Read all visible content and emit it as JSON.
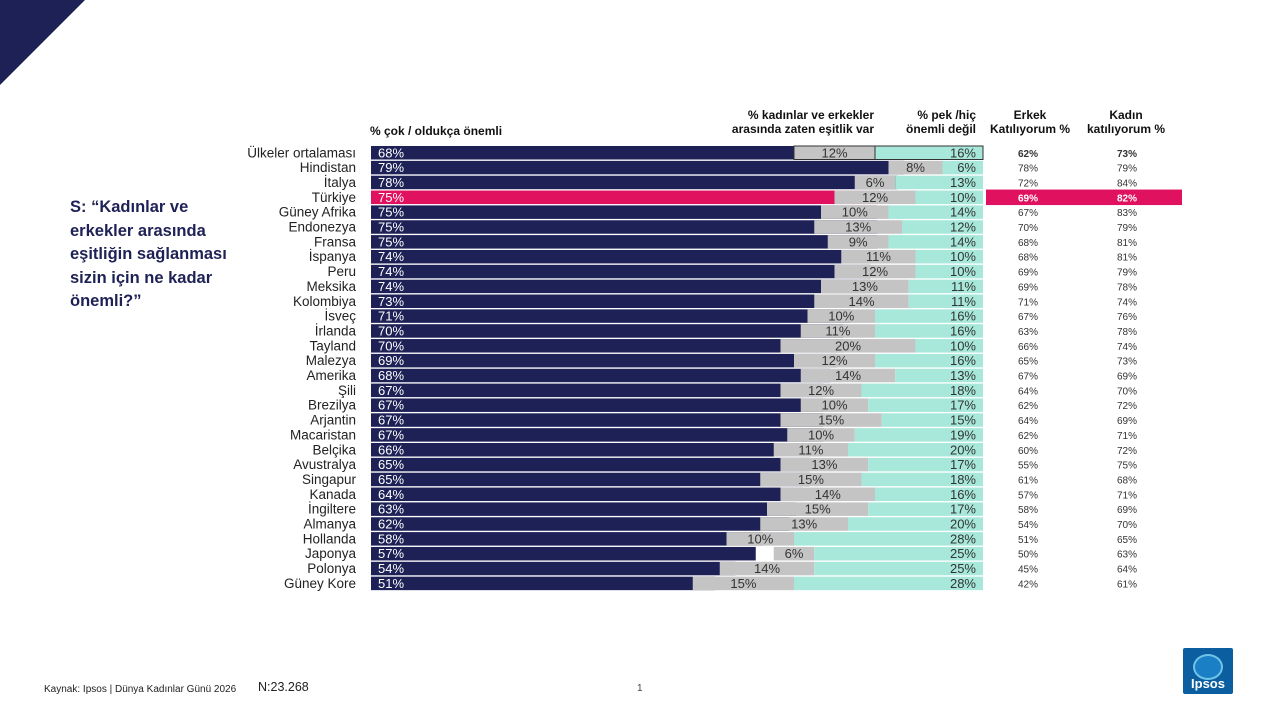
{
  "question": "S: “Kadınlar ve erkekler arasında eşitliğin sağlanması sizin için ne kadar önemli?”",
  "headers": {
    "important": "% çok / oldukça önemli",
    "equality": "% kadınlar ve erkekler arasında zaten eşitlik var",
    "not_important": "% pek /hiç önemli değil",
    "male_agree": "Erkek Katılıyorum %",
    "female_agree": "Kadın katılıyorum %"
  },
  "footer": {
    "source": "Kaynak: Ipsos | Dünya Kadınlar Günü 2026",
    "n": "N:23.268",
    "page": "1"
  },
  "logo_text": "Ipsos",
  "colors": {
    "important": "#1e2156",
    "highlight": "#e0115f",
    "equality": "#c4c4c4",
    "not_important": "#a7e8da"
  },
  "chart_data": {
    "type": "bar",
    "title": "",
    "xlabel": "",
    "ylabel": "",
    "xlim": [
      0,
      100
    ],
    "highlight": "Türkiye",
    "categories": [
      "Ülkeler ortalaması",
      "Hindistan",
      "İtalya",
      "Türkiye",
      "Güney Afrika",
      "Endonezya",
      "Fransa",
      "İspanya",
      "Peru",
      "Meksika",
      "Kolombiya",
      "İsveç",
      "İrlanda",
      "Tayland",
      "Malezya",
      "Amerika",
      "Şili",
      "Brezilya",
      "Arjantin",
      "Macaristan",
      "Belçika",
      "Avustralya",
      "Singapur",
      "Kanada",
      "İngiltere",
      "Almanya",
      "Hollanda",
      "Japonya",
      "Polonya",
      "Güney Kore"
    ],
    "series": [
      {
        "name": "% çok / oldukça önemli",
        "values": [
          68,
          79,
          78,
          75,
          75,
          75,
          75,
          74,
          74,
          74,
          73,
          71,
          70,
          70,
          69,
          68,
          67,
          67,
          67,
          67,
          66,
          65,
          65,
          64,
          63,
          62,
          58,
          57,
          54,
          51
        ]
      },
      {
        "name": "% kadınlar ve erkekler arasında zaten eşitlik var",
        "values": [
          12,
          8,
          6,
          12,
          10,
          13,
          9,
          11,
          12,
          13,
          14,
          10,
          11,
          20,
          12,
          14,
          12,
          10,
          15,
          10,
          11,
          13,
          15,
          14,
          15,
          13,
          10,
          6,
          14,
          15
        ]
      },
      {
        "name": "% pek /hiç önemli değil",
        "values": [
          16,
          6,
          13,
          10,
          14,
          12,
          14,
          10,
          10,
          11,
          11,
          16,
          16,
          10,
          16,
          13,
          18,
          17,
          15,
          19,
          20,
          17,
          18,
          16,
          17,
          20,
          28,
          25,
          25,
          28
        ]
      },
      {
        "name": "Erkek Katılıyorum %",
        "values": [
          62,
          78,
          72,
          69,
          67,
          70,
          68,
          68,
          69,
          69,
          71,
          67,
          63,
          66,
          65,
          67,
          64,
          62,
          64,
          62,
          60,
          55,
          61,
          57,
          58,
          54,
          51,
          50,
          45,
          42
        ]
      },
      {
        "name": "Kadın katılıyorum %",
        "values": [
          73,
          79,
          84,
          82,
          83,
          79,
          81,
          81,
          79,
          78,
          74,
          76,
          78,
          74,
          73,
          69,
          70,
          72,
          69,
          71,
          72,
          75,
          68,
          71,
          69,
          70,
          65,
          63,
          64,
          61
        ]
      }
    ]
  }
}
